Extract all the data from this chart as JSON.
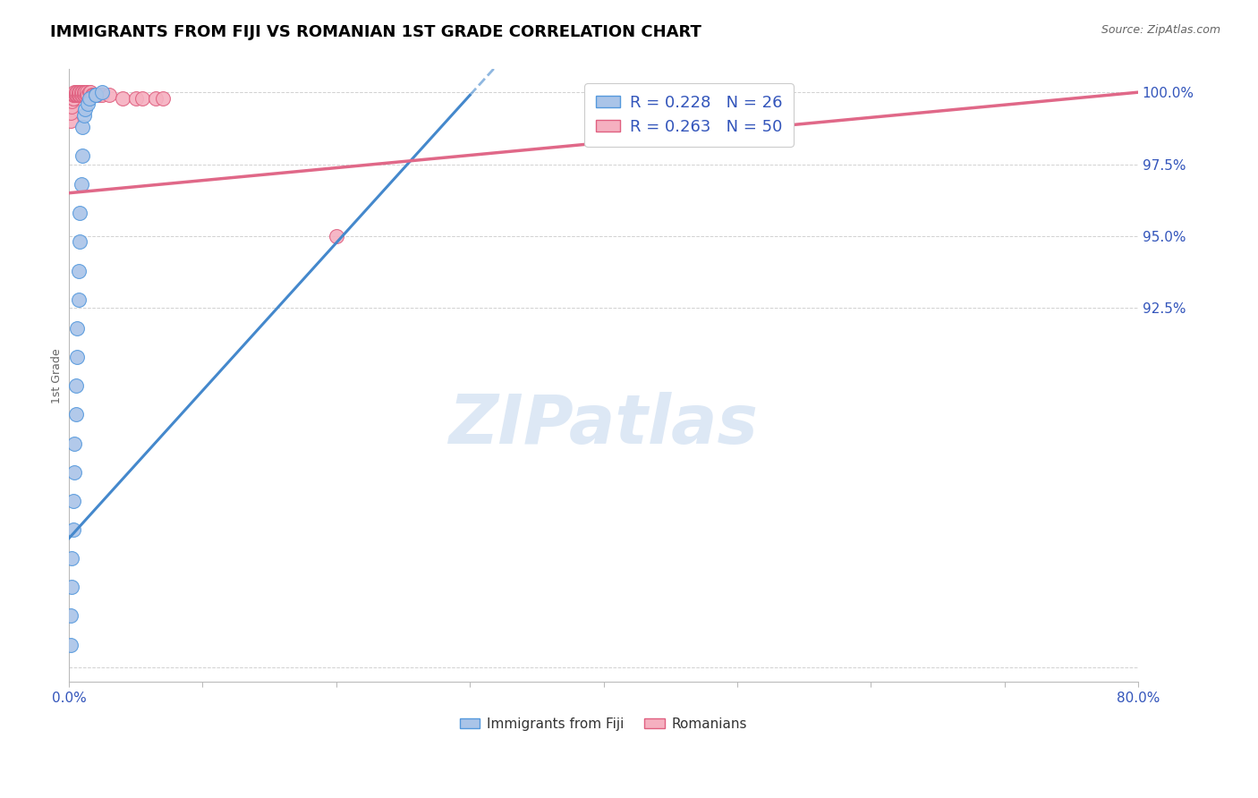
{
  "title": "IMMIGRANTS FROM FIJI VS ROMANIAN 1ST GRADE CORRELATION CHART",
  "source": "Source: ZipAtlas.com",
  "ylabel": "1st Grade",
  "fiji_color": "#aac4e8",
  "fiji_edge_color": "#5599dd",
  "romanian_color": "#f5b0c0",
  "romanian_edge_color": "#e06080",
  "fiji_line_color": "#4488cc",
  "romanian_line_color": "#e06888",
  "watermark_color": "#dde8f5",
  "label_color": "#3355bb",
  "fiji_R": 0.228,
  "fiji_N": 26,
  "romanian_R": 0.263,
  "romanian_N": 50,
  "xmin": 0.0,
  "xmax": 0.8,
  "ymin": 0.795,
  "ymax": 1.008,
  "fiji_x": [
    0.001,
    0.001,
    0.002,
    0.002,
    0.003,
    0.003,
    0.004,
    0.004,
    0.005,
    0.005,
    0.006,
    0.006,
    0.007,
    0.007,
    0.008,
    0.008,
    0.009,
    0.01,
    0.01,
    0.011,
    0.012,
    0.014,
    0.015,
    0.02,
    0.02,
    0.025
  ],
  "fiji_y": [
    0.808,
    0.818,
    0.828,
    0.838,
    0.848,
    0.858,
    0.868,
    0.878,
    0.888,
    0.898,
    0.908,
    0.918,
    0.928,
    0.938,
    0.948,
    0.958,
    0.968,
    0.978,
    0.988,
    0.992,
    0.994,
    0.996,
    0.998,
    0.999,
    0.999,
    1.0
  ],
  "romanian_x": [
    0.001,
    0.001,
    0.002,
    0.002,
    0.003,
    0.003,
    0.003,
    0.004,
    0.004,
    0.004,
    0.005,
    0.005,
    0.005,
    0.005,
    0.006,
    0.006,
    0.006,
    0.007,
    0.007,
    0.007,
    0.008,
    0.008,
    0.008,
    0.009,
    0.009,
    0.01,
    0.01,
    0.011,
    0.011,
    0.012,
    0.012,
    0.013,
    0.013,
    0.014,
    0.015,
    0.016,
    0.016,
    0.017,
    0.018,
    0.019,
    0.02,
    0.022,
    0.025,
    0.03,
    0.04,
    0.05,
    0.055,
    0.065,
    0.07,
    0.2
  ],
  "romanian_y": [
    0.99,
    0.993,
    0.995,
    0.997,
    0.998,
    0.998,
    0.999,
    0.999,
    0.999,
    1.0,
    0.999,
    0.999,
    0.999,
    1.0,
    0.999,
    0.999,
    1.0,
    0.999,
    0.999,
    1.0,
    0.999,
    0.999,
    1.0,
    0.999,
    1.0,
    0.999,
    1.0,
    0.999,
    1.0,
    0.999,
    1.0,
    0.999,
    1.0,
    0.999,
    1.0,
    0.999,
    1.0,
    0.999,
    0.999,
    0.999,
    0.999,
    0.999,
    0.999,
    0.999,
    0.998,
    0.998,
    0.998,
    0.998,
    0.998,
    0.95
  ],
  "fiji_line_x0": 0.0,
  "fiji_line_y0": 0.845,
  "fiji_line_x1": 0.3,
  "fiji_line_y1": 0.999,
  "romanian_line_x0": 0.0,
  "romanian_line_y0": 0.965,
  "romanian_line_x1": 0.8,
  "romanian_line_y1": 1.0,
  "yticks": [
    0.8,
    0.925,
    0.95,
    0.975,
    1.0
  ],
  "ytick_labels": [
    "",
    "92.5%",
    "95.0%",
    "97.5%",
    "100.0%"
  ]
}
